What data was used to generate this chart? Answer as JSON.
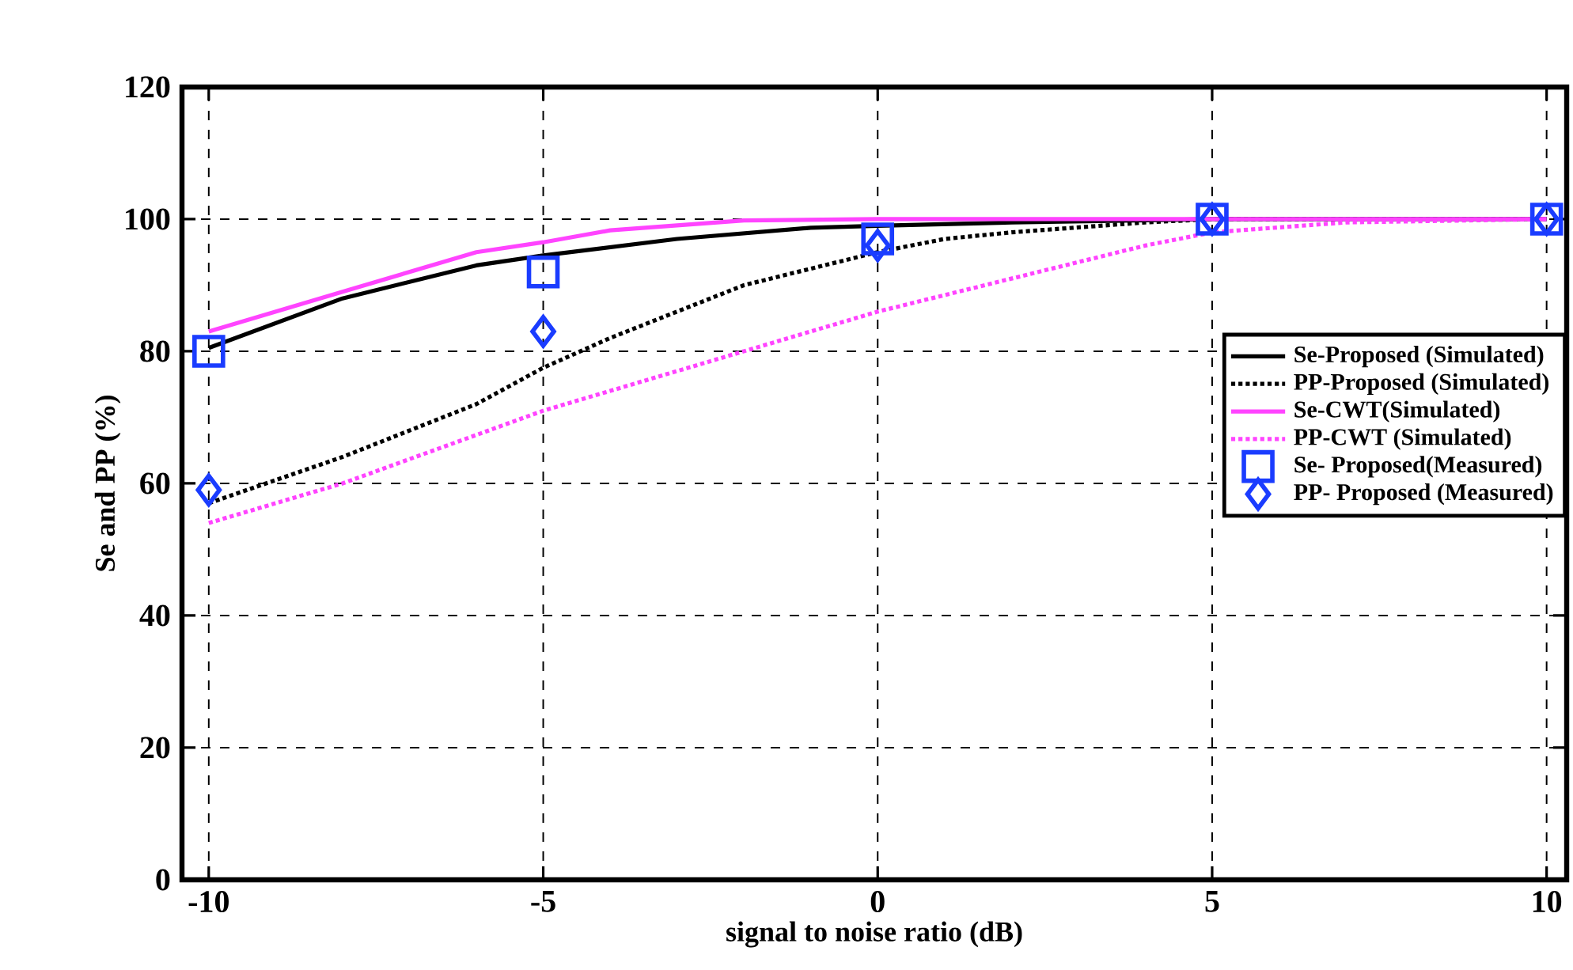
{
  "chart_data": {
    "type": "line",
    "xlabel": "signal to noise ratio (dB)",
    "ylabel": "Se and PP (%)",
    "xlim": [
      -10.4,
      10.3
    ],
    "ylim": [
      0,
      120
    ],
    "xticks": [
      -10,
      -5,
      0,
      5,
      10
    ],
    "yticks": [
      0,
      20,
      40,
      60,
      80,
      100,
      120
    ],
    "grid": true,
    "legend": "right",
    "series": [
      {
        "name": "Se-Proposed (Simulated)",
        "color": "#000000",
        "line_style": "solid",
        "marker": "none",
        "x": [
          -10,
          -8,
          -6,
          -5,
          -3,
          -1,
          0,
          2,
          5,
          10
        ],
        "values": [
          80.5,
          88,
          93,
          94.5,
          97,
          98.7,
          99,
          99.5,
          100,
          100
        ]
      },
      {
        "name": "PP-Proposed (Simulated)",
        "color": "#000000",
        "line_style": "dotted",
        "marker": "none",
        "x": [
          -10,
          -8,
          -6,
          -5,
          -4,
          -2,
          0,
          1,
          2,
          4,
          5,
          10
        ],
        "values": [
          57,
          64,
          72,
          77.5,
          82,
          90,
          95,
          97,
          98,
          99.5,
          100,
          100
        ]
      },
      {
        "name": "Se-CWT(Simulated)",
        "color": "#ff44ff",
        "line_style": "solid",
        "marker": "none",
        "x": [
          -10,
          -8,
          -6,
          -5,
          -4,
          -2,
          0,
          10
        ],
        "values": [
          83,
          89,
          95,
          96.5,
          98.3,
          99.8,
          100,
          100
        ]
      },
      {
        "name": "PP-CWT (Simulated)",
        "color": "#ff44ff",
        "line_style": "dotted",
        "marker": "none",
        "x": [
          -10,
          -8,
          -5,
          0,
          2,
          4,
          5,
          7,
          10
        ],
        "values": [
          54,
          60,
          71,
          86,
          91,
          96,
          98,
          99.5,
          100
        ]
      },
      {
        "name": "Se- Proposed(Measured)",
        "type": "scatter",
        "color": "#1a3cff",
        "marker": "square",
        "x": [
          -10,
          -5,
          0,
          5,
          10
        ],
        "values": [
          80,
          92,
          97,
          100,
          100
        ]
      },
      {
        "name": "PP- Proposed (Measured)",
        "type": "scatter",
        "color": "#1a3cff",
        "marker": "diamond",
        "x": [
          -10,
          -5,
          0,
          5,
          10
        ],
        "values": [
          59,
          83,
          96,
          100,
          100
        ]
      }
    ]
  }
}
